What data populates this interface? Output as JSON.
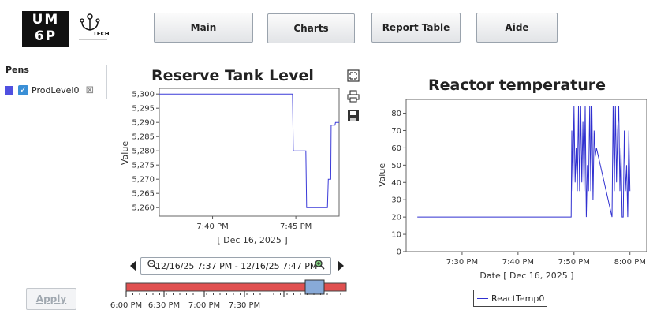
{
  "logo": {
    "text_lines": [
      "UM",
      "6P"
    ],
    "tech_label": "TECH"
  },
  "nav": {
    "main": "Main",
    "charts": "Charts",
    "report_table": "Report Table",
    "aide": "Aide"
  },
  "pens": {
    "title": "Pens",
    "items": [
      {
        "name": "ProdLevel0",
        "color": "#5050e0",
        "checked": true
      }
    ]
  },
  "apply_label": "Apply",
  "range": {
    "text": "12/16/25 7:37 PM - 12/16/25 7:47 PM",
    "overview_ticks": [
      "6:00 PM",
      "6:30 PM",
      "7:00 PM",
      "7:30 PM"
    ],
    "bar_color": "#e05050",
    "thumb_color": "#88aad8"
  },
  "chart_data": [
    {
      "type": "line",
      "title": "Reserve Tank Level",
      "xlabel": "[ Dec 16, 2025 ]",
      "ylabel": "Value",
      "ylim": [
        5257,
        5302
      ],
      "yticks": [
        "5,300",
        "5,295",
        "5,290",
        "5,285",
        "5,280",
        "5,275",
        "5,270",
        "5,265",
        "5,260"
      ],
      "ytick_values": [
        5300,
        5295,
        5290,
        5285,
        5280,
        5275,
        5270,
        5265,
        5260
      ],
      "xticks": [
        "7:40 PM",
        "7:45 PM"
      ],
      "xtick_values": [
        40,
        45
      ],
      "xlim": [
        36.8,
        47.6
      ],
      "grid": false,
      "color": "#3a3ad8",
      "series": [
        {
          "name": "ProdLevel0",
          "x": [
            36.8,
            44.8,
            44.85,
            45.6,
            45.65,
            46.9,
            46.95,
            47.1,
            47.12,
            47.35,
            47.38,
            47.6
          ],
          "values": [
            5300,
            5300,
            5280,
            5280,
            5260,
            5260,
            5270,
            5270,
            5289,
            5289,
            5290,
            5290
          ]
        }
      ]
    },
    {
      "type": "line",
      "title": "Reactor temperature",
      "xlabel": "Date  [ Dec 16, 2025 ]",
      "ylabel": "Value",
      "ylim": [
        0,
        88
      ],
      "yticks": [
        "80",
        "70",
        "60",
        "50",
        "40",
        "30",
        "20",
        "10",
        "0"
      ],
      "ytick_values": [
        80,
        70,
        60,
        50,
        40,
        30,
        20,
        10,
        0
      ],
      "xticks": [
        "7:30 PM",
        "7:40 PM",
        "7:50 PM",
        "8:00 PM"
      ],
      "xtick_values": [
        30,
        40,
        50,
        60
      ],
      "xlim": [
        20,
        63
      ],
      "grid": false,
      "color": "#3030d0",
      "legend": "ReactTemp0",
      "series": [
        {
          "name": "ReactTemp0",
          "x": [
            22,
            49.5,
            49.6,
            49.8,
            50.0,
            50.2,
            50.4,
            50.6,
            50.8,
            51.0,
            51.2,
            51.4,
            51.6,
            51.8,
            52.0,
            52.2,
            52.4,
            52.6,
            52.8,
            53.0,
            53.2,
            53.4,
            53.6,
            53.8,
            54.0,
            56.8,
            57.0,
            57.2,
            57.4,
            57.6,
            57.8,
            58.0,
            58.2,
            58.4,
            58.6,
            58.8,
            59.0,
            59.2,
            59.4,
            59.6,
            59.8,
            60.0
          ],
          "values": [
            20,
            20,
            70,
            35,
            84,
            40,
            60,
            35,
            84,
            35,
            84,
            40,
            75,
            35,
            84,
            20,
            50,
            35,
            84,
            35,
            84,
            30,
            70,
            55,
            60,
            20,
            84,
            35,
            84,
            40,
            70,
            84,
            35,
            60,
            20,
            20,
            70,
            35,
            50,
            20,
            70,
            35
          ]
        }
      ]
    }
  ]
}
